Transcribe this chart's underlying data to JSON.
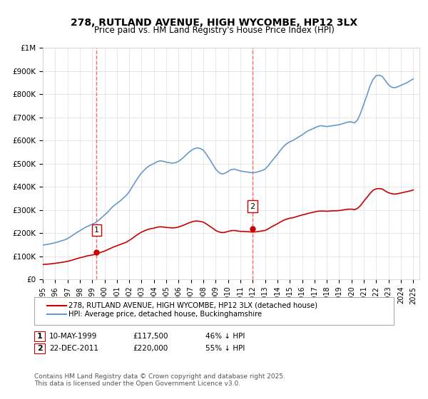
{
  "title": "278, RUTLAND AVENUE, HIGH WYCOMBE, HP12 3LX",
  "subtitle": "Price paid vs. HM Land Registry's House Price Index (HPI)",
  "xmin": 1995.0,
  "xmax": 2025.5,
  "ymin": 0,
  "ymax": 1000000,
  "yticks": [
    0,
    100000,
    200000,
    300000,
    400000,
    500000,
    600000,
    700000,
    800000,
    900000,
    1000000
  ],
  "ytick_labels": [
    "£0",
    "£100K",
    "£200K",
    "£300K",
    "£400K",
    "£500K",
    "£600K",
    "£700K",
    "£800K",
    "£900K",
    "£1M"
  ],
  "sale1_x": 1999.36,
  "sale1_y": 117500,
  "sale1_label": "1",
  "sale2_x": 2011.98,
  "sale2_y": 220000,
  "sale2_label": "2",
  "red_line_color": "#cc0000",
  "blue_line_color": "#6699cc",
  "vline_color": "#ff6666",
  "annotation_box_color": "#ffffff",
  "annotation_border_color": "#cc0000",
  "background_color": "#ffffff",
  "grid_color": "#dddddd",
  "legend1": "278, RUTLAND AVENUE, HIGH WYCOMBE, HP12 3LX (detached house)",
  "legend2": "HPI: Average price, detached house, Buckinghamshire",
  "footnote": "Contains HM Land Registry data © Crown copyright and database right 2025.\nThis data is licensed under the Open Government Licence v3.0.",
  "table_row1": "1    10-MAY-1999    £117,500    46% ↓ HPI",
  "table_row2": "2    22-DEC-2011    £220,000    55% ↓ HPI",
  "hpi_data_x": [
    1995.0,
    1995.25,
    1995.5,
    1995.75,
    1996.0,
    1996.25,
    1996.5,
    1996.75,
    1997.0,
    1997.25,
    1997.5,
    1997.75,
    1998.0,
    1998.25,
    1998.5,
    1998.75,
    1999.0,
    1999.25,
    1999.5,
    1999.75,
    2000.0,
    2000.25,
    2000.5,
    2000.75,
    2001.0,
    2001.25,
    2001.5,
    2001.75,
    2002.0,
    2002.25,
    2002.5,
    2002.75,
    2003.0,
    2003.25,
    2003.5,
    2003.75,
    2004.0,
    2004.25,
    2004.5,
    2004.75,
    2005.0,
    2005.25,
    2005.5,
    2005.75,
    2006.0,
    2006.25,
    2006.5,
    2006.75,
    2007.0,
    2007.25,
    2007.5,
    2007.75,
    2008.0,
    2008.25,
    2008.5,
    2008.75,
    2009.0,
    2009.25,
    2009.5,
    2009.75,
    2010.0,
    2010.25,
    2010.5,
    2010.75,
    2011.0,
    2011.25,
    2011.5,
    2011.75,
    2012.0,
    2012.25,
    2012.5,
    2012.75,
    2013.0,
    2013.25,
    2013.5,
    2013.75,
    2014.0,
    2014.25,
    2014.5,
    2014.75,
    2015.0,
    2015.25,
    2015.5,
    2015.75,
    2016.0,
    2016.25,
    2016.5,
    2016.75,
    2017.0,
    2017.25,
    2017.5,
    2017.75,
    2018.0,
    2018.25,
    2018.5,
    2018.75,
    2019.0,
    2019.25,
    2019.5,
    2019.75,
    2020.0,
    2020.25,
    2020.5,
    2020.75,
    2021.0,
    2021.25,
    2021.5,
    2021.75,
    2022.0,
    2022.25,
    2022.5,
    2022.75,
    2023.0,
    2023.25,
    2023.5,
    2023.75,
    2024.0,
    2024.25,
    2024.5,
    2024.75,
    2025.0
  ],
  "hpi_data_y": [
    148000,
    150000,
    152000,
    155000,
    158000,
    162000,
    166000,
    170000,
    176000,
    184000,
    193000,
    202000,
    210000,
    218000,
    226000,
    232000,
    238000,
    244000,
    254000,
    266000,
    278000,
    290000,
    305000,
    318000,
    328000,
    338000,
    350000,
    362000,
    378000,
    400000,
    422000,
    442000,
    460000,
    474000,
    486000,
    494000,
    500000,
    508000,
    512000,
    510000,
    506000,
    504000,
    502000,
    504000,
    510000,
    520000,
    532000,
    545000,
    556000,
    564000,
    568000,
    565000,
    558000,
    540000,
    520000,
    498000,
    476000,
    462000,
    455000,
    458000,
    466000,
    474000,
    476000,
    472000,
    468000,
    466000,
    464000,
    462000,
    460000,
    462000,
    466000,
    470000,
    476000,
    490000,
    508000,
    524000,
    540000,
    558000,
    574000,
    586000,
    594000,
    600000,
    608000,
    616000,
    624000,
    634000,
    642000,
    648000,
    654000,
    660000,
    664000,
    662000,
    660000,
    662000,
    664000,
    666000,
    668000,
    672000,
    676000,
    680000,
    680000,
    676000,
    690000,
    720000,
    758000,
    796000,
    836000,
    864000,
    880000,
    882000,
    876000,
    858000,
    840000,
    830000,
    828000,
    832000,
    838000,
    844000,
    850000,
    858000,
    866000
  ],
  "red_data_x": [
    1995.0,
    1995.25,
    1995.5,
    1995.75,
    1996.0,
    1996.25,
    1996.5,
    1996.75,
    1997.0,
    1997.25,
    1997.5,
    1997.75,
    1998.0,
    1998.25,
    1998.5,
    1998.75,
    1999.0,
    1999.25,
    1999.5,
    1999.75,
    2000.0,
    2000.25,
    2000.5,
    2000.75,
    2001.0,
    2001.25,
    2001.5,
    2001.75,
    2002.0,
    2002.25,
    2002.5,
    2002.75,
    2003.0,
    2003.25,
    2003.5,
    2003.75,
    2004.0,
    2004.25,
    2004.5,
    2004.75,
    2005.0,
    2005.25,
    2005.5,
    2005.75,
    2006.0,
    2006.25,
    2006.5,
    2006.75,
    2007.0,
    2007.25,
    2007.5,
    2007.75,
    2008.0,
    2008.25,
    2008.5,
    2008.75,
    2009.0,
    2009.25,
    2009.5,
    2009.75,
    2010.0,
    2010.25,
    2010.5,
    2010.75,
    2011.0,
    2011.25,
    2011.5,
    2011.75,
    2012.0,
    2012.25,
    2012.5,
    2012.75,
    2013.0,
    2013.25,
    2013.5,
    2013.75,
    2014.0,
    2014.25,
    2014.5,
    2014.75,
    2015.0,
    2015.25,
    2015.5,
    2015.75,
    2016.0,
    2016.25,
    2016.5,
    2016.75,
    2017.0,
    2017.25,
    2017.5,
    2017.75,
    2018.0,
    2018.25,
    2018.5,
    2018.75,
    2019.0,
    2019.25,
    2019.5,
    2019.75,
    2020.0,
    2020.25,
    2020.5,
    2020.75,
    2021.0,
    2021.25,
    2021.5,
    2021.75,
    2022.0,
    2022.25,
    2022.5,
    2022.75,
    2023.0,
    2023.25,
    2023.5,
    2023.75,
    2024.0,
    2024.25,
    2024.5,
    2024.75,
    2025.0
  ],
  "red_data_y": [
    64000,
    65000,
    66000,
    67500,
    69000,
    71000,
    73000,
    75000,
    77500,
    81000,
    85000,
    89000,
    93000,
    96000,
    100000,
    103000,
    105000,
    107500,
    112000,
    117500,
    122000,
    128000,
    134000,
    140000,
    145000,
    150000,
    155000,
    160000,
    168000,
    177000,
    187000,
    196000,
    204000,
    210000,
    215000,
    219000,
    221000,
    225000,
    227000,
    226000,
    224000,
    223000,
    222000,
    223000,
    226000,
    231000,
    236000,
    242000,
    247000,
    251000,
    252000,
    250000,
    247000,
    239000,
    230000,
    221000,
    211000,
    205000,
    202000,
    203000,
    207000,
    210000,
    211000,
    209000,
    207000,
    207000,
    206000,
    205000,
    204000,
    205000,
    207000,
    209000,
    211000,
    218000,
    226000,
    233000,
    240000,
    248000,
    255000,
    260000,
    264000,
    266000,
    270000,
    274000,
    278000,
    281000,
    285000,
    288000,
    291000,
    294000,
    295000,
    295000,
    294000,
    295000,
    296000,
    296000,
    297000,
    299000,
    301000,
    303000,
    303000,
    301000,
    307000,
    320000,
    338000,
    354000,
    371000,
    385000,
    391000,
    392000,
    390000,
    381000,
    374000,
    370000,
    368000,
    370000,
    373000,
    376000,
    379000,
    382000,
    386000
  ]
}
